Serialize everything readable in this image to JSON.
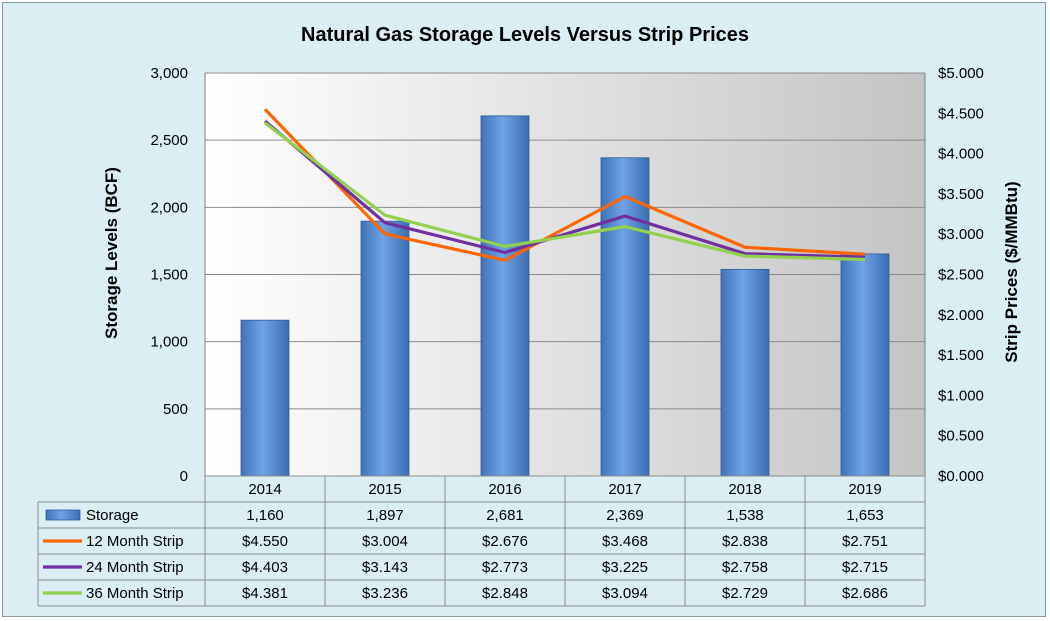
{
  "chart_data": {
    "type": "bar",
    "title": "Natural Gas Storage Levels Versus Strip Prices",
    "ylabel": "Storage Levels (BCF)",
    "y2label": "Strip Prices ($/MMBtu)",
    "categories": [
      "2014",
      "2015",
      "2016",
      "2017",
      "2018",
      "2019"
    ],
    "ylim": [
      0,
      3000
    ],
    "y2lim": [
      0,
      5
    ],
    "yticks": [
      "0",
      "500",
      "1,000",
      "1,500",
      "2,000",
      "2,500",
      "3,000"
    ],
    "y2ticks": [
      "$0.000",
      "$0.500",
      "$1.000",
      "$1.500",
      "$2.000",
      "$2.500",
      "$3.000",
      "$3.500",
      "$4.000",
      "$4.500",
      "$5.000"
    ],
    "grid": true,
    "legend": "data-table",
    "series": [
      {
        "name": "Storage",
        "kind": "bar",
        "axis": "left",
        "color": "#558ed5",
        "values": [
          1160,
          1897,
          2681,
          2369,
          1538,
          1653
        ],
        "labels": [
          "1,160",
          "1,897",
          "2,681",
          "2,369",
          "1,538",
          "1,653"
        ]
      },
      {
        "name": "12 Month Strip",
        "kind": "line",
        "axis": "right",
        "color": "#ff6600",
        "values": [
          4.55,
          3.004,
          2.676,
          3.468,
          2.838,
          2.751
        ],
        "labels": [
          "$4.550",
          "$3.004",
          "$2.676",
          "$3.468",
          "$2.838",
          "$2.751"
        ]
      },
      {
        "name": "24 Month Strip",
        "kind": "line",
        "axis": "right",
        "color": "#7030a0",
        "values": [
          4.403,
          3.143,
          2.773,
          3.225,
          2.758,
          2.715
        ],
        "labels": [
          "$4.403",
          "$3.143",
          "$2.773",
          "$3.225",
          "$2.758",
          "$2.715"
        ]
      },
      {
        "name": "36 Month Strip",
        "kind": "line",
        "axis": "right",
        "color": "#92d050",
        "values": [
          4.381,
          3.236,
          2.848,
          3.094,
          2.729,
          2.686
        ],
        "labels": [
          "$4.381",
          "$3.236",
          "$2.848",
          "$3.094",
          "$2.729",
          "$2.686"
        ]
      }
    ]
  }
}
